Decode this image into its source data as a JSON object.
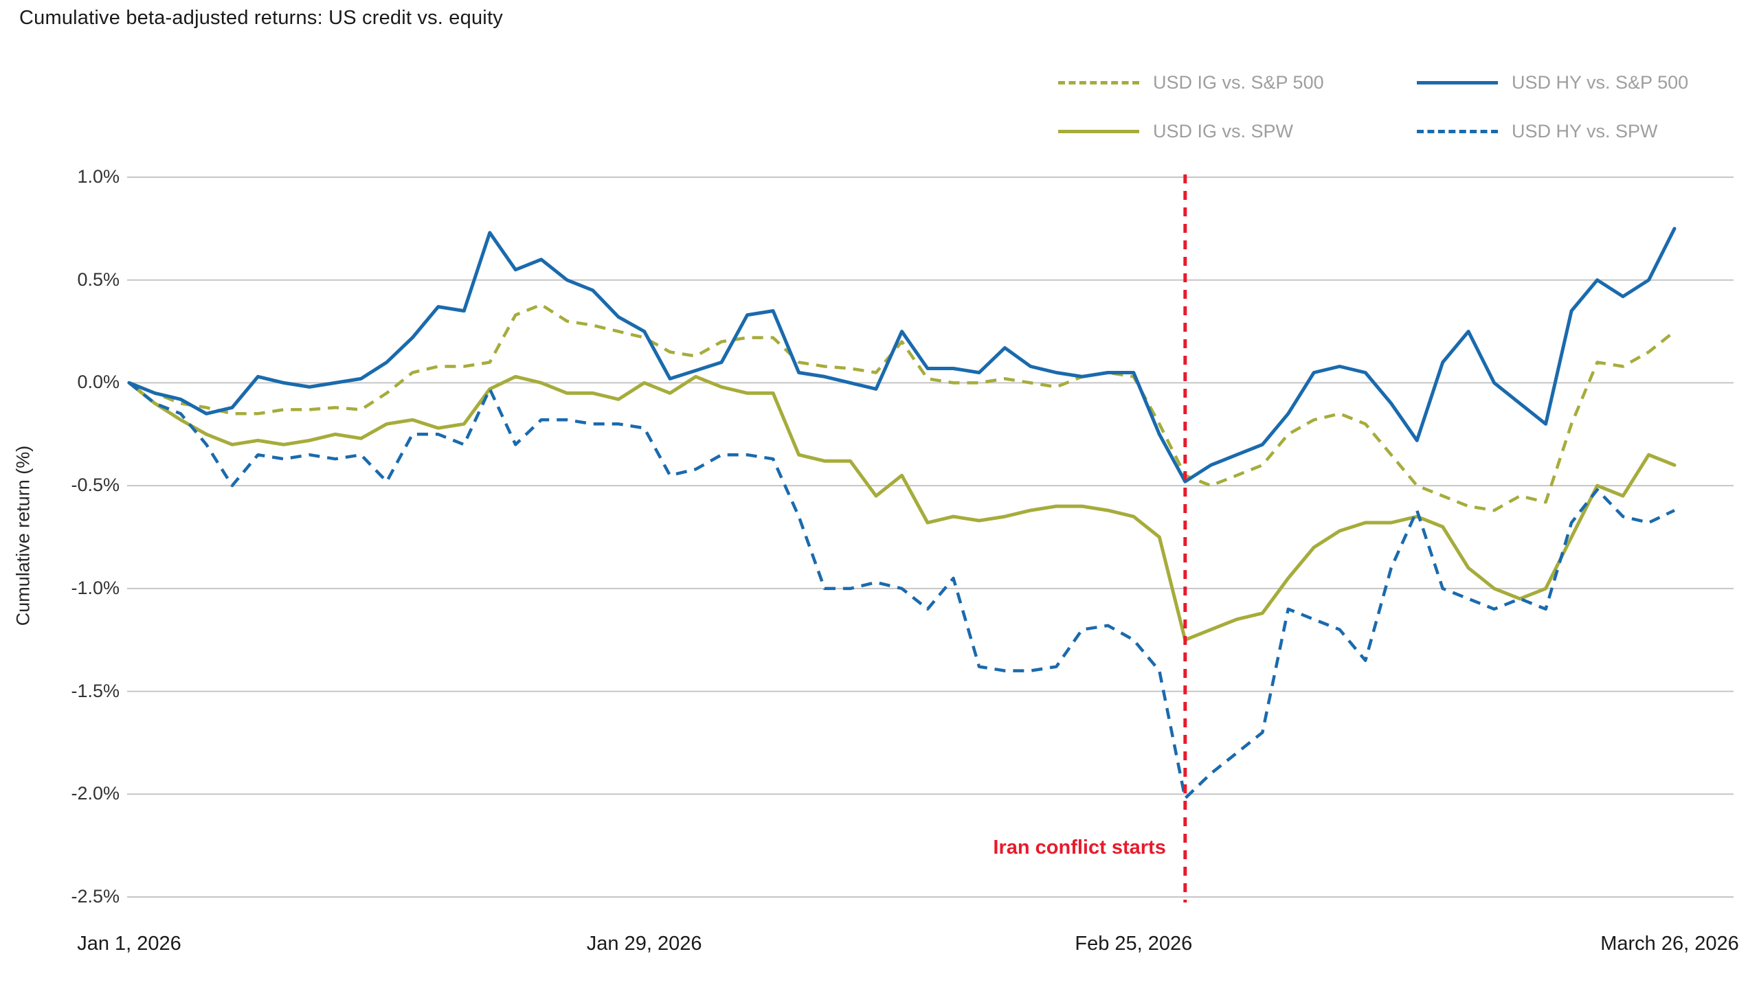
{
  "title": "Cumulative beta-adjusted returns: US credit vs. equity",
  "ylabel": "Cumulative return (%)",
  "colors": {
    "olive": "#a6ac3b",
    "blue": "#1a6aad",
    "red": "#e81a2c",
    "grid": "#c6c6c6",
    "title_text": "#1a1a1a",
    "axis_text": "#333333",
    "legend_text": "#9e9e9e"
  },
  "chart_data": {
    "type": "line",
    "title": "Cumulative beta-adjusted returns: US credit vs. equity",
    "xlabel": "",
    "ylabel": "Cumulative return (%)",
    "ylim": [
      -2.5,
      1.0
    ],
    "grid": "horizontal",
    "legend_position": "top-right",
    "n_points": 61,
    "y_ticks": [
      1.0,
      0.5,
      0.0,
      -0.5,
      -1.0,
      -1.5,
      -2.0,
      -2.5
    ],
    "y_tick_labels": [
      "1.0%",
      "0.5%",
      "0.0%",
      "-0.5%",
      "-1.0%",
      "-1.5%",
      "-2.0%",
      "-2.5%"
    ],
    "x_tick_labels": [
      {
        "label": "Jan 1, 2026",
        "index": 0
      },
      {
        "label": "Jan 29, 2026",
        "index": 20
      },
      {
        "label": "Feb 25, 2026",
        "index": 39
      },
      {
        "label": "March 26, 2026",
        "index": 60
      }
    ],
    "annotation": {
      "label": "Iran conflict starts",
      "index": 41
    },
    "series": [
      {
        "name": "USD IG vs. S&P 500",
        "color": "#a6ac3b",
        "dashed": true,
        "values": [
          0.0,
          -0.05,
          -0.1,
          -0.12,
          -0.15,
          -0.15,
          -0.13,
          -0.13,
          -0.12,
          -0.13,
          -0.05,
          0.05,
          0.08,
          0.08,
          0.1,
          0.33,
          0.38,
          0.3,
          0.28,
          0.25,
          0.22,
          0.15,
          0.13,
          0.2,
          0.22,
          0.22,
          0.1,
          0.08,
          0.07,
          0.05,
          0.2,
          0.02,
          0.0,
          0.0,
          0.02,
          0.0,
          -0.02,
          0.03,
          0.05,
          0.03,
          -0.2,
          -0.45,
          -0.5,
          -0.45,
          -0.4,
          -0.25,
          -0.18,
          -0.15,
          -0.2,
          -0.35,
          -0.5,
          -0.55,
          -0.6,
          -0.62,
          -0.55,
          -0.58,
          -0.2,
          0.1,
          0.08,
          0.15,
          0.25
        ]
      },
      {
        "name": "USD HY vs. S&P 500",
        "color": "#1a6aad",
        "dashed": false,
        "values": [
          0.0,
          -0.05,
          -0.08,
          -0.15,
          -0.12,
          0.03,
          0.0,
          -0.02,
          0.0,
          0.02,
          0.1,
          0.22,
          0.37,
          0.35,
          0.73,
          0.55,
          0.6,
          0.5,
          0.45,
          0.32,
          0.25,
          0.02,
          0.06,
          0.1,
          0.33,
          0.35,
          0.05,
          0.03,
          0.0,
          -0.03,
          0.25,
          0.07,
          0.07,
          0.05,
          0.17,
          0.08,
          0.05,
          0.03,
          0.05,
          0.05,
          -0.25,
          -0.48,
          -0.4,
          -0.35,
          -0.3,
          -0.15,
          0.05,
          0.08,
          0.05,
          -0.1,
          -0.28,
          0.1,
          0.25,
          0.0,
          -0.1,
          -0.2,
          0.35,
          0.5,
          0.42,
          0.5,
          0.75
        ]
      },
      {
        "name": "USD IG vs. SPW",
        "color": "#a6ac3b",
        "dashed": false,
        "values": [
          0.0,
          -0.1,
          -0.18,
          -0.25,
          -0.3,
          -0.28,
          -0.3,
          -0.28,
          -0.25,
          -0.27,
          -0.2,
          -0.18,
          -0.22,
          -0.2,
          -0.03,
          0.03,
          0.0,
          -0.05,
          -0.05,
          -0.08,
          0.0,
          -0.05,
          0.03,
          -0.02,
          -0.05,
          -0.05,
          -0.35,
          -0.38,
          -0.38,
          -0.55,
          -0.45,
          -0.68,
          -0.65,
          -0.67,
          -0.65,
          -0.62,
          -0.6,
          -0.6,
          -0.62,
          -0.65,
          -0.75,
          -1.25,
          -1.2,
          -1.15,
          -1.12,
          -0.95,
          -0.8,
          -0.72,
          -0.68,
          -0.68,
          -0.65,
          -0.7,
          -0.9,
          -1.0,
          -1.05,
          -1.0,
          -0.75,
          -0.5,
          -0.55,
          -0.35,
          -0.4
        ]
      },
      {
        "name": "USD HY vs. SPW",
        "color": "#1a6aad",
        "dashed": true,
        "values": [
          0.0,
          -0.1,
          -0.15,
          -0.3,
          -0.5,
          -0.35,
          -0.37,
          -0.35,
          -0.37,
          -0.35,
          -0.48,
          -0.25,
          -0.25,
          -0.3,
          -0.03,
          -0.3,
          -0.18,
          -0.18,
          -0.2,
          -0.2,
          -0.22,
          -0.45,
          -0.42,
          -0.35,
          -0.35,
          -0.37,
          -0.65,
          -1.0,
          -1.0,
          -0.97,
          -1.0,
          -1.1,
          -0.95,
          -1.38,
          -1.4,
          -1.4,
          -1.38,
          -1.2,
          -1.18,
          -1.25,
          -1.4,
          -2.02,
          -1.9,
          -1.8,
          -1.7,
          -1.1,
          -1.15,
          -1.2,
          -1.35,
          -0.9,
          -0.62,
          -1.0,
          -1.05,
          -1.1,
          -1.05,
          -1.1,
          -0.68,
          -0.52,
          -0.65,
          -0.68,
          -0.62
        ]
      }
    ]
  }
}
